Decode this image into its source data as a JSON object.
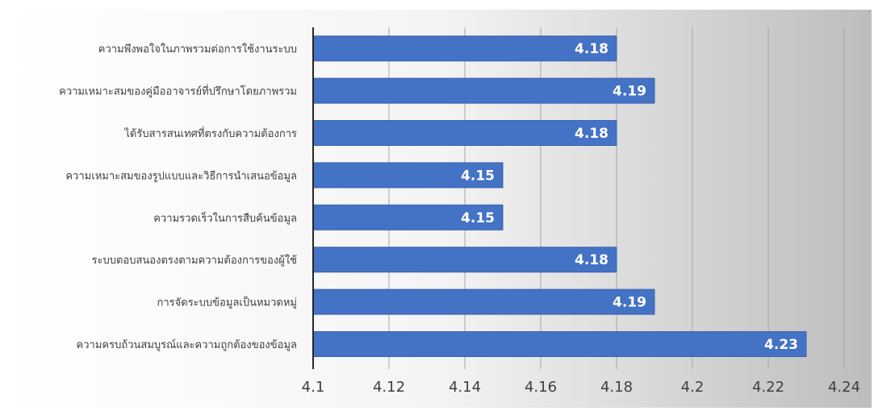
{
  "chart_data": {
    "type": "bar",
    "orientation": "horizontal",
    "categories": [
      "ความพึงพอใจในภาพรวมต่อการใช้งานระบบ",
      "ความเหมาะสมของคู่มืออาจารย์ที่ปรึกษาโดยภาพรวม",
      "ได้รับสารสนเทศที่ตรงกับความต้องการ",
      "ความเหมาะสมของรูปแบบและวิธีการนำเสนอข้อมูล",
      "ความรวดเร็วในการสืบค้นข้อมูล",
      "ระบบตอบสนองตรงตามความต้องการของผู้ใช้",
      "การจัดระบบข้อมูลเป็นหมวดหมู่",
      "ความครบถ้วนสมบูรณ์และความถูกต้องของข้อมูล"
    ],
    "values": [
      4.18,
      4.19,
      4.18,
      4.15,
      4.15,
      4.18,
      4.19,
      4.23
    ],
    "data_labels": [
      "4.18",
      "4.19",
      "4.18",
      "4.15",
      "4.15",
      "4.18",
      "4.19",
      "4.23"
    ],
    "xlim": [
      4.1,
      4.24
    ],
    "x_ticks": [
      "4.1",
      "4.12",
      "4.14",
      "4.16",
      "4.18",
      "4.2",
      "4.22",
      "4.24"
    ],
    "title": "",
    "xlabel": "",
    "ylabel": "",
    "grid": "vertical",
    "legend": "none",
    "colors": {
      "bar": "#4472c4",
      "bar_edge": "#3a64b0",
      "grid": "#a6a6a6",
      "axis": "#262626",
      "text": "#404040",
      "label_text": "#ffffff",
      "background_light": "#ffffff",
      "background_dark": "#bdbdbd"
    }
  }
}
